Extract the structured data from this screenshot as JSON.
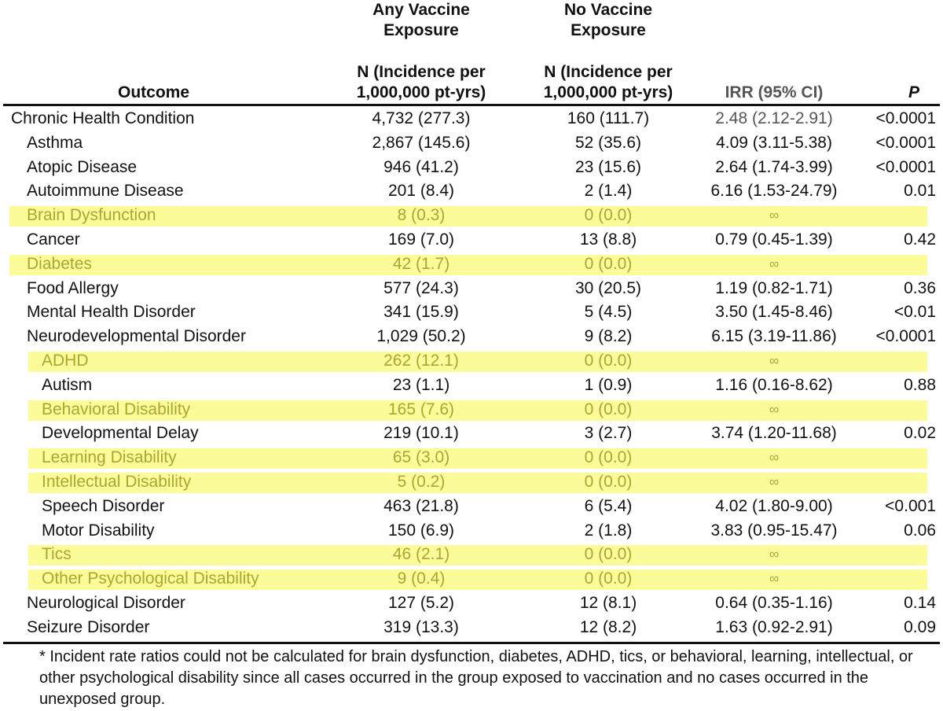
{
  "header": {
    "group1_line1": "Any Vaccine",
    "group1_line2": "Exposure",
    "group2_line1": "No Vaccine",
    "group2_line2": "Exposure",
    "outcome": "Outcome",
    "n_col1_line1": "N (Incidence per",
    "n_col1_line2": "1,000,000 pt-yrs)",
    "n_col2_line1": "N (Incidence per",
    "n_col2_line2": "1,000,000 pt-yrs)",
    "irr": "IRR (95% CI)",
    "p": "P"
  },
  "highlight_color": "#fbfb9a",
  "highlight_text_color": "#a8a830",
  "rows": [
    {
      "outcome": "Chronic Health Condition",
      "indent": 0,
      "any": "4,732 (277.3)",
      "none": "160 (111.7)",
      "irr": "2.48 (2.12-2.91)",
      "p": "<0.0001",
      "highlight": false
    },
    {
      "outcome": "Asthma",
      "indent": 1,
      "any": "2,867 (145.6)",
      "none": "52 (35.6)",
      "irr": "4.09 (3.11-5.38)",
      "p": "<0.0001",
      "highlight": false
    },
    {
      "outcome": "Atopic Disease",
      "indent": 1,
      "any": "946 (41.2)",
      "none": "23 (15.6)",
      "irr": "2.64 (1.74-3.99)",
      "p": "<0.0001",
      "highlight": false
    },
    {
      "outcome": "Autoimmune Disease",
      "indent": 1,
      "any": "201 (8.4)",
      "none": "2 (1.4)",
      "irr": "6.16 (1.53-24.79)",
      "p": "0.01",
      "highlight": false
    },
    {
      "outcome": "Brain Dysfunction",
      "indent": 1,
      "any": "8 (0.3)",
      "none": "0 (0.0)",
      "irr": "∞",
      "p": "",
      "highlight": true
    },
    {
      "outcome": "Cancer",
      "indent": 1,
      "any": "169 (7.0)",
      "none": "13 (8.8)",
      "irr": "0.79 (0.45-1.39)",
      "p": "0.42",
      "highlight": false
    },
    {
      "outcome": "Diabetes",
      "indent": 1,
      "any": "42 (1.7)",
      "none": "0 (0.0)",
      "irr": "∞",
      "p": "",
      "highlight": true
    },
    {
      "outcome": "Food Allergy",
      "indent": 1,
      "any": "577 (24.3)",
      "none": "30 (20.5)",
      "irr": "1.19 (0.82-1.71)",
      "p": "0.36",
      "highlight": false
    },
    {
      "outcome": "Mental Health Disorder",
      "indent": 1,
      "any": "341 (15.9)",
      "none": "5 (4.5)",
      "irr": "3.50 (1.45-8.46)",
      "p": "<0.01",
      "highlight": false
    },
    {
      "outcome": "Neurodevelopmental Disorder",
      "indent": 1,
      "any": "1,029 (50.2)",
      "none": "9 (8.2)",
      "irr": "6.15 (3.19-11.86)",
      "p": "<0.0001",
      "highlight": false
    },
    {
      "outcome": "ADHD",
      "indent": 2,
      "any": "262 (12.1)",
      "none": "0 (0.0)",
      "irr": "∞",
      "p": "",
      "highlight": true
    },
    {
      "outcome": "Autism",
      "indent": 2,
      "any": "23 (1.1)",
      "none": "1 (0.9)",
      "irr": "1.16 (0.16-8.62)",
      "p": "0.88",
      "highlight": false
    },
    {
      "outcome": "Behavioral Disability",
      "indent": 2,
      "any": "165 (7.6)",
      "none": "0 (0.0)",
      "irr": "∞",
      "p": "",
      "highlight": true
    },
    {
      "outcome": "Developmental Delay",
      "indent": 2,
      "any": "219 (10.1)",
      "none": "3 (2.7)",
      "irr": "3.74 (1.20-11.68)",
      "p": "0.02",
      "highlight": false
    },
    {
      "outcome": "Learning Disability",
      "indent": 2,
      "any": "65 (3.0)",
      "none": "0 (0.0)",
      "irr": "∞",
      "p": "",
      "highlight": true
    },
    {
      "outcome": "Intellectual Disability",
      "indent": 2,
      "any": "5 (0.2)",
      "none": "0 (0.0)",
      "irr": "∞",
      "p": "",
      "highlight": true
    },
    {
      "outcome": "Speech Disorder",
      "indent": 2,
      "any": "463 (21.8)",
      "none": "6 (5.4)",
      "irr": "4.02 (1.80-9.00)",
      "p": "<0.001",
      "highlight": false
    },
    {
      "outcome": "Motor Disability",
      "indent": 2,
      "any": "150 (6.9)",
      "none": "2 (1.8)",
      "irr": "3.83 (0.95-15.47)",
      "p": "0.06",
      "highlight": false
    },
    {
      "outcome": "Tics",
      "indent": 2,
      "any": "46 (2.1)",
      "none": "0 (0.0)",
      "irr": "∞",
      "p": "",
      "highlight": true
    },
    {
      "outcome": "Other Psychological Disability",
      "indent": 2,
      "any": "9 (0.4)",
      "none": "0 (0.0)",
      "irr": "∞",
      "p": "",
      "highlight": true
    },
    {
      "outcome": "Neurological Disorder",
      "indent": 1,
      "any": "127 (5.2)",
      "none": "12 (8.1)",
      "irr": "0.64 (0.35-1.16)",
      "p": "0.14",
      "highlight": false
    },
    {
      "outcome": "Seizure Disorder",
      "indent": 1,
      "any": "319 (13.3)",
      "none": "12 (8.2)",
      "irr": "1.63 (0.92-2.91)",
      "p": "0.09",
      "highlight": false
    }
  ],
  "footnote": "* Incident rate ratios could not be calculated for brain dysfunction, diabetes, ADHD, tics, or behavioral, learning, intellectual, or other psychological disability since all cases occurred in the group exposed to vaccination and no cases occurred in the unexposed group."
}
